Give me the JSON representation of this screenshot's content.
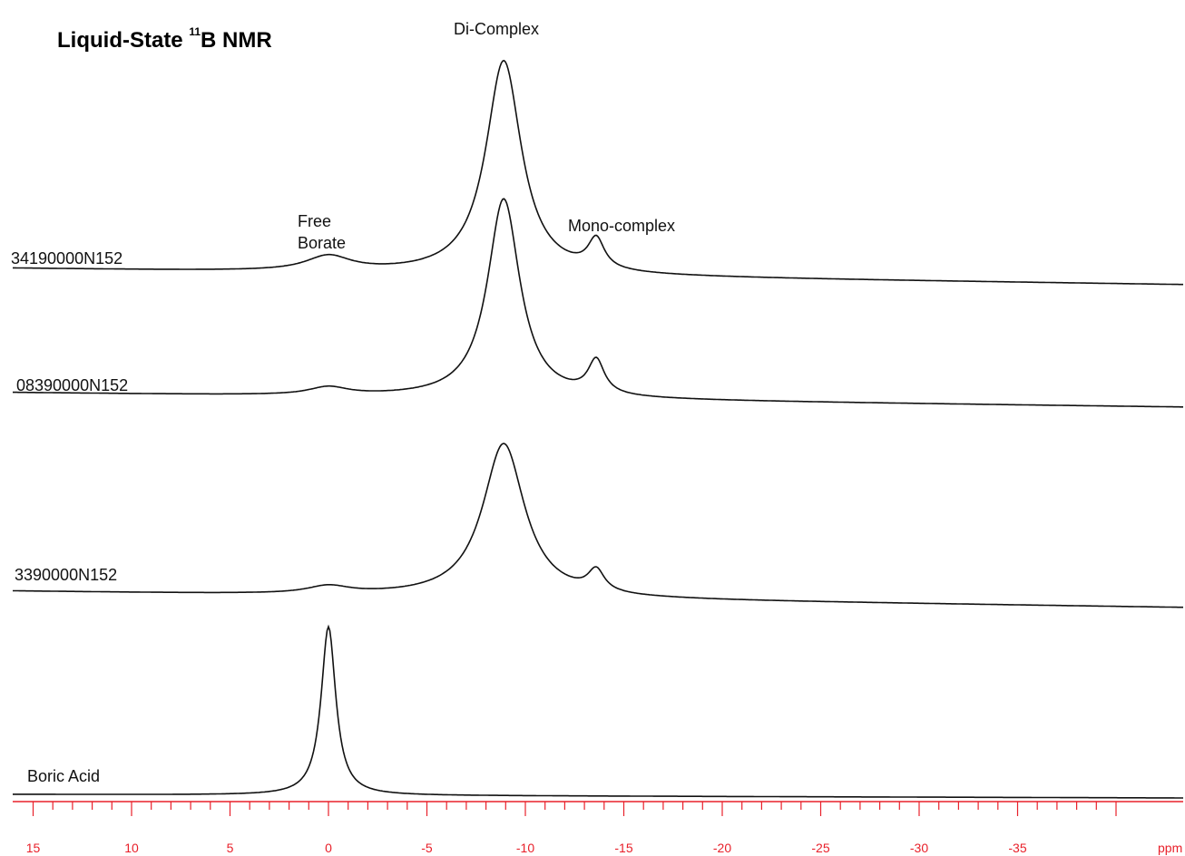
{
  "chart_data": {
    "type": "line",
    "title_prefix": "Liquid-State ",
    "title_superscript": "11",
    "title_suffix": "B NMR",
    "xlabel": "ppm",
    "xlim": [
      15,
      -40
    ],
    "x_ticks": [
      15,
      10,
      5,
      0,
      -5,
      -10,
      -15,
      -20,
      -25,
      -30,
      -35
    ],
    "x_tick_labels": [
      "15",
      "10",
      "5",
      "0",
      "-5",
      "-10",
      "-15",
      "-20",
      "-25",
      "-30",
      "-35"
    ],
    "annotations": {
      "di_complex": "Di-Complex",
      "mono_complex": "Mono-complex",
      "free_borate_line1": "Free",
      "free_borate_line2": "Borate"
    },
    "series": [
      {
        "name": "34190000N152",
        "peaks": [
          {
            "center": 0,
            "height": 0.07,
            "width": 1.4
          },
          {
            "center": -8.9,
            "height": 1.0,
            "width": 1.1
          },
          {
            "center": -13.6,
            "height": 0.14,
            "width": 0.5
          }
        ]
      },
      {
        "name": "08390000N152",
        "peaks": [
          {
            "center": 0,
            "height": 0.04,
            "width": 1.2
          },
          {
            "center": -8.9,
            "height": 1.0,
            "width": 1.0
          },
          {
            "center": -13.6,
            "height": 0.17,
            "width": 0.5
          }
        ]
      },
      {
        "name": "3390000N152",
        "peaks": [
          {
            "center": 0,
            "height": 0.05,
            "width": 1.3
          },
          {
            "center": -8.9,
            "height": 1.0,
            "width": 1.3
          },
          {
            "center": -13.6,
            "height": 0.14,
            "width": 0.5
          }
        ]
      },
      {
        "name": "Boric Acid",
        "peaks": [
          {
            "center": 0,
            "height": 1.0,
            "width": 0.45
          }
        ]
      }
    ]
  }
}
